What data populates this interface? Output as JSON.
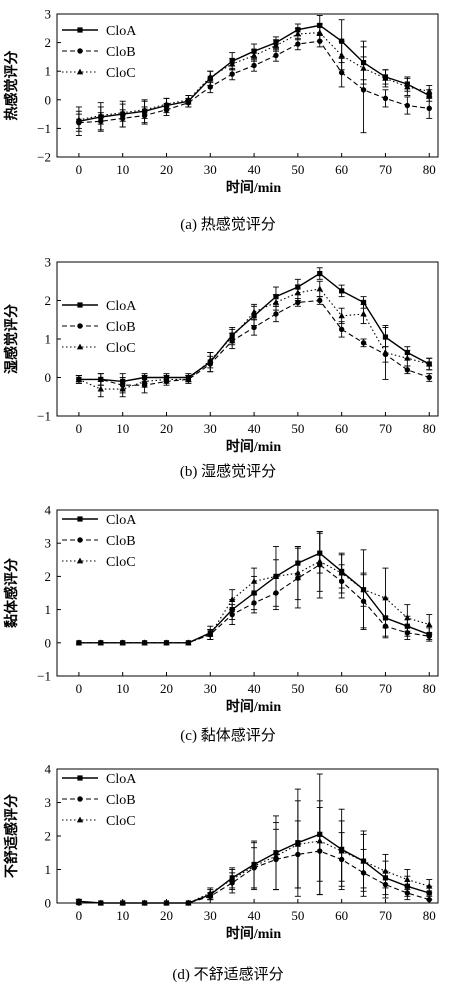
{
  "chart_data": [
    {
      "type": "line",
      "caption": "(a) 热感觉评分",
      "xlabel": "时间/min",
      "ylabel": "热感觉评分",
      "xlim": [
        -5,
        82
      ],
      "ylim": [
        -2,
        3
      ],
      "xticks": [
        0,
        10,
        20,
        30,
        40,
        50,
        60,
        70,
        80
      ],
      "yticks": [
        -2,
        -1,
        0,
        1,
        2,
        3
      ],
      "legend_position": "top-left",
      "x": [
        0,
        5,
        10,
        15,
        20,
        25,
        30,
        35,
        40,
        45,
        50,
        55,
        60,
        65,
        70,
        75,
        80
      ],
      "series": [
        {
          "name": "CloA",
          "style": "solid",
          "marker": "square",
          "values": [
            -0.75,
            -0.6,
            -0.5,
            -0.4,
            -0.2,
            -0.05,
            0.75,
            1.35,
            1.7,
            2.0,
            2.45,
            2.6,
            2.05,
            1.3,
            0.8,
            0.55,
            0.15
          ],
          "errors": [
            0.5,
            0.5,
            0.45,
            0.4,
            0.25,
            0.2,
            0.25,
            0.3,
            0.25,
            0.2,
            0.2,
            0.35,
            0.75,
            0.75,
            0.25,
            0.25,
            0.2
          ]
        },
        {
          "name": "CloB",
          "style": "dashed",
          "marker": "circle",
          "values": [
            -0.8,
            -0.75,
            -0.65,
            -0.55,
            -0.35,
            -0.1,
            0.45,
            0.9,
            1.2,
            1.55,
            1.95,
            2.05,
            0.95,
            0.35,
            0.05,
            -0.2,
            -0.3
          ],
          "errors": [
            0.3,
            0.3,
            0.3,
            0.3,
            0.2,
            0.15,
            0.2,
            0.2,
            0.2,
            0.2,
            0.2,
            0.2,
            0.5,
            1.5,
            0.3,
            0.3,
            0.35
          ]
        },
        {
          "name": "CloC",
          "style": "dotted",
          "marker": "triangle",
          "values": [
            -0.7,
            -0.55,
            -0.45,
            -0.35,
            -0.15,
            0.0,
            0.8,
            1.25,
            1.55,
            1.9,
            2.3,
            2.35,
            1.55,
            1.1,
            0.75,
            0.45,
            0.3
          ],
          "errors": [
            0.3,
            0.3,
            0.3,
            0.3,
            0.2,
            0.15,
            0.2,
            0.2,
            0.2,
            0.2,
            0.2,
            0.3,
            0.5,
            0.4,
            0.3,
            0.3,
            0.2
          ]
        }
      ]
    },
    {
      "type": "line",
      "caption": "(b) 湿感觉评分",
      "xlabel": "时间/min",
      "ylabel": "湿感觉评分",
      "xlim": [
        -5,
        82
      ],
      "ylim": [
        -1,
        3
      ],
      "xticks": [
        0,
        10,
        20,
        30,
        40,
        50,
        60,
        70,
        80
      ],
      "yticks": [
        -1,
        0,
        1,
        2,
        3
      ],
      "legend_position": "left",
      "x": [
        0,
        5,
        10,
        15,
        20,
        25,
        30,
        35,
        40,
        45,
        50,
        55,
        60,
        65,
        70,
        75,
        80
      ],
      "series": [
        {
          "name": "CloA",
          "style": "solid",
          "marker": "square",
          "values": [
            -0.05,
            -0.05,
            -0.1,
            0.0,
            0.0,
            0.0,
            0.4,
            1.1,
            1.6,
            2.1,
            2.35,
            2.7,
            2.25,
            1.95,
            1.05,
            0.65,
            0.35
          ],
          "errors": [
            0.1,
            0.15,
            0.2,
            0.1,
            0.1,
            0.1,
            0.25,
            0.2,
            0.25,
            0.25,
            0.2,
            0.15,
            0.15,
            0.15,
            0.25,
            0.15,
            0.15
          ]
        },
        {
          "name": "CloB",
          "style": "dashed",
          "marker": "circle",
          "values": [
            -0.05,
            -0.05,
            -0.2,
            -0.2,
            -0.1,
            -0.05,
            0.35,
            0.95,
            1.3,
            1.65,
            1.95,
            2.0,
            1.25,
            0.9,
            0.6,
            0.2,
            0.0
          ],
          "errors": [
            0.1,
            0.15,
            0.2,
            0.2,
            0.1,
            0.1,
            0.2,
            0.2,
            0.2,
            0.2,
            0.1,
            0.1,
            0.2,
            0.1,
            0.2,
            0.1,
            0.1
          ]
        },
        {
          "name": "CloC",
          "style": "dotted",
          "marker": "triangle",
          "values": [
            -0.05,
            -0.3,
            -0.3,
            -0.1,
            -0.05,
            -0.05,
            0.45,
            1.05,
            1.7,
            1.95,
            2.2,
            2.3,
            1.6,
            1.65,
            0.65,
            0.5,
            0.35
          ],
          "errors": [
            0.1,
            0.2,
            0.2,
            0.15,
            0.1,
            0.1,
            0.2,
            0.2,
            0.2,
            0.2,
            0.2,
            0.2,
            0.2,
            0.25,
            0.7,
            0.2,
            0.15
          ]
        }
      ]
    },
    {
      "type": "line",
      "caption": "(c) 黏体感评分",
      "xlabel": "时间/min",
      "ylabel": "黏体感评分",
      "xlim": [
        -5,
        82
      ],
      "ylim": [
        -1,
        4
      ],
      "xticks": [
        0,
        10,
        20,
        30,
        40,
        50,
        60,
        70,
        80
      ],
      "yticks": [
        -1,
        0,
        1,
        2,
        3,
        4
      ],
      "legend_position": "top-left",
      "x": [
        0,
        5,
        10,
        15,
        20,
        25,
        30,
        35,
        40,
        45,
        50,
        55,
        60,
        65,
        70,
        75,
        80
      ],
      "series": [
        {
          "name": "CloA",
          "style": "solid",
          "marker": "square",
          "values": [
            0,
            0,
            0,
            0,
            0,
            0,
            0.3,
            1.0,
            1.5,
            2.0,
            2.4,
            2.7,
            2.15,
            1.6,
            0.75,
            0.5,
            0.25
          ],
          "errors": [
            0,
            0,
            0,
            0,
            0,
            0,
            0.2,
            0.3,
            0.5,
            0.9,
            0.5,
            0.6,
            0.5,
            1.2,
            0.6,
            0.3,
            0.2
          ]
        },
        {
          "name": "CloB",
          "style": "dashed",
          "marker": "circle",
          "values": [
            0,
            0,
            0,
            0,
            0,
            0,
            0.25,
            0.85,
            1.2,
            1.5,
            1.95,
            2.35,
            1.85,
            1.25,
            0.5,
            0.3,
            0.2
          ],
          "errors": [
            0,
            0,
            0,
            0,
            0,
            0,
            0.15,
            0.3,
            0.3,
            0.5,
            0.9,
            1.0,
            0.5,
            0.8,
            0.3,
            0.2,
            0.1
          ]
        },
        {
          "name": "CloC",
          "style": "dotted",
          "marker": "triangle",
          "values": [
            0,
            0,
            0,
            0,
            0,
            0,
            0.25,
            1.3,
            1.85,
            2.0,
            2.1,
            2.45,
            2.1,
            1.6,
            1.35,
            0.75,
            0.55
          ],
          "errors": [
            0,
            0,
            0,
            0,
            0,
            0,
            0.15,
            0.3,
            0.4,
            0.5,
            0.8,
            0.9,
            0.6,
            0.5,
            0.9,
            0.4,
            0.3
          ]
        }
      ]
    },
    {
      "type": "line",
      "caption": "(d) 不舒适感评分",
      "xlabel": "时间/min",
      "ylabel": "不舒适感评分",
      "xlim": [
        -5,
        82
      ],
      "ylim": [
        0,
        4
      ],
      "xticks": [
        0,
        10,
        20,
        30,
        40,
        50,
        60,
        70,
        80
      ],
      "yticks": [
        0,
        1,
        2,
        3,
        4
      ],
      "legend_position": "top-left",
      "x": [
        0,
        5,
        10,
        15,
        20,
        25,
        30,
        35,
        40,
        45,
        50,
        55,
        60,
        65,
        70,
        75,
        80
      ],
      "series": [
        {
          "name": "CloA",
          "style": "solid",
          "marker": "square",
          "values": [
            0.05,
            0,
            0,
            0,
            0,
            0,
            0.25,
            0.75,
            1.15,
            1.5,
            1.8,
            2.05,
            1.6,
            1.25,
            0.75,
            0.5,
            0.3
          ],
          "errors": [
            0.05,
            0,
            0,
            0,
            0,
            0,
            0.15,
            0.3,
            0.7,
            1.1,
            1.6,
            1.8,
            1.2,
            0.9,
            0.5,
            0.3,
            0.2
          ]
        },
        {
          "name": "CloB",
          "style": "dashed",
          "marker": "circle",
          "values": [
            0.0,
            0,
            0,
            0,
            0,
            0,
            0.2,
            0.6,
            1.05,
            1.3,
            1.45,
            1.55,
            1.3,
            0.9,
            0.55,
            0.3,
            0.1
          ],
          "errors": [
            0.05,
            0,
            0,
            0,
            0,
            0,
            0.1,
            0.3,
            0.6,
            0.9,
            1.0,
            1.3,
            0.8,
            0.7,
            0.4,
            0.2,
            0.1
          ]
        },
        {
          "name": "CloC",
          "style": "dotted",
          "marker": "triangle",
          "values": [
            0.05,
            0,
            0,
            0,
            0,
            0,
            0.3,
            0.7,
            1.1,
            1.4,
            1.75,
            1.85,
            1.55,
            1.25,
            0.95,
            0.7,
            0.5
          ],
          "errors": [
            0.05,
            0,
            0,
            0,
            0,
            0,
            0.15,
            0.3,
            0.7,
            1.0,
            1.3,
            1.2,
            0.9,
            0.8,
            0.5,
            0.3,
            0.2
          ]
        }
      ]
    }
  ]
}
